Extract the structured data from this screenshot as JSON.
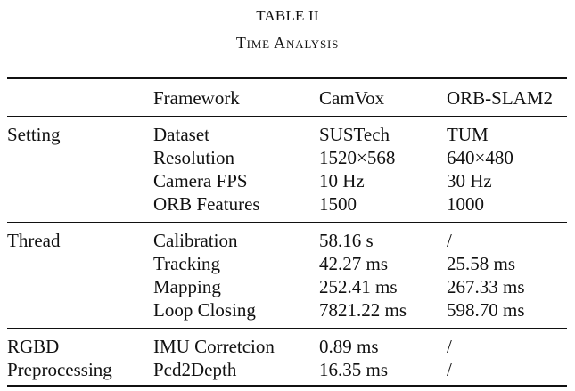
{
  "table": {
    "label": "TABLE II",
    "title": "Time Analysis",
    "columns": [
      "",
      "Framework",
      "CamVox",
      "ORB-SLAM2"
    ],
    "groups": [
      {
        "label": [
          "Setting"
        ],
        "rows": [
          [
            "Dataset",
            "SUSTech",
            "TUM"
          ],
          [
            "Resolution",
            "1520×568",
            "640×480"
          ],
          [
            "Camera FPS",
            "10 Hz",
            "30 Hz"
          ],
          [
            "ORB Features",
            "1500",
            "1000"
          ]
        ]
      },
      {
        "label": [
          "Thread"
        ],
        "rows": [
          [
            "Calibration",
            "58.16 s",
            "/"
          ],
          [
            "Tracking",
            "42.27 ms",
            "25.58 ms"
          ],
          [
            "Mapping",
            "252.41 ms",
            "267.33 ms"
          ],
          [
            "Loop Closing",
            "7821.22 ms",
            "598.70 ms"
          ]
        ]
      },
      {
        "label": [
          "RGBD",
          "Preprocessing"
        ],
        "rows": [
          [
            "IMU Corretcion",
            "0.89 ms",
            "/"
          ],
          [
            "Pcd2Depth",
            "16.35 ms",
            "/"
          ]
        ]
      }
    ]
  }
}
